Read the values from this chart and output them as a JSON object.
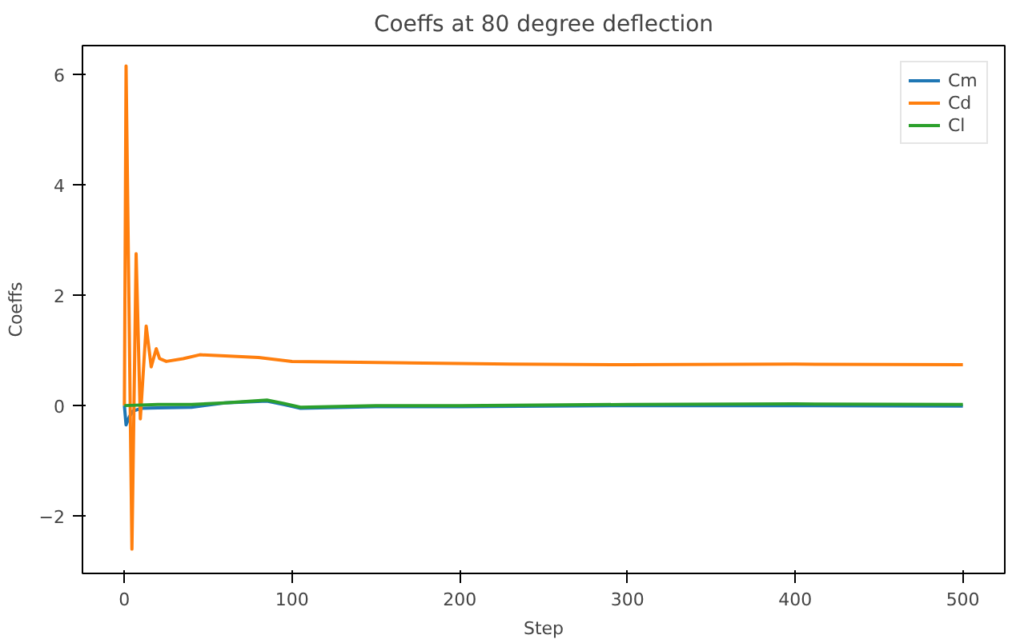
{
  "chart_data": {
    "type": "line",
    "title": "Coeffs at 80 degree deflection",
    "xlabel": "Step",
    "ylabel": "Coeffs",
    "xlim": [
      -25,
      525
    ],
    "ylim": [
      -3.04,
      6.52
    ],
    "xticks": [
      0,
      100,
      200,
      300,
      400,
      500
    ],
    "yticks": [
      -2,
      0,
      2,
      4,
      6
    ],
    "grid": false,
    "legend": "top right",
    "series": [
      {
        "name": "Cm",
        "color": "#1f77b4",
        "x": [
          0,
          1,
          3,
          5,
          10,
          20,
          40,
          60,
          85,
          95,
          105,
          150,
          200,
          300,
          400,
          500
        ],
        "values": [
          0,
          -0.35,
          -0.2,
          -0.1,
          -0.05,
          -0.04,
          -0.03,
          0.05,
          0.08,
          0.02,
          -0.05,
          -0.02,
          -0.02,
          0,
          0,
          -0.01
        ]
      },
      {
        "name": "Cd",
        "color": "#ff7f0e",
        "x": [
          0,
          1,
          4.5,
          7,
          9.5,
          13,
          16,
          19,
          21,
          25,
          35,
          45,
          60,
          80,
          100,
          150,
          230,
          300,
          400,
          500
        ],
        "values": [
          0,
          6.15,
          -2.6,
          2.75,
          -0.24,
          1.44,
          0.7,
          1.03,
          0.85,
          0.8,
          0.85,
          0.92,
          0.9,
          0.87,
          0.8,
          0.78,
          0.75,
          0.74,
          0.75,
          0.74
        ]
      },
      {
        "name": "Cl",
        "color": "#2ca02c",
        "x": [
          0,
          20,
          40,
          60,
          85,
          95,
          105,
          150,
          200,
          300,
          400,
          500
        ],
        "values": [
          0,
          0.02,
          0.02,
          0.05,
          0.1,
          0.04,
          -0.03,
          0,
          0,
          0.02,
          0.03,
          0.02
        ]
      }
    ]
  }
}
